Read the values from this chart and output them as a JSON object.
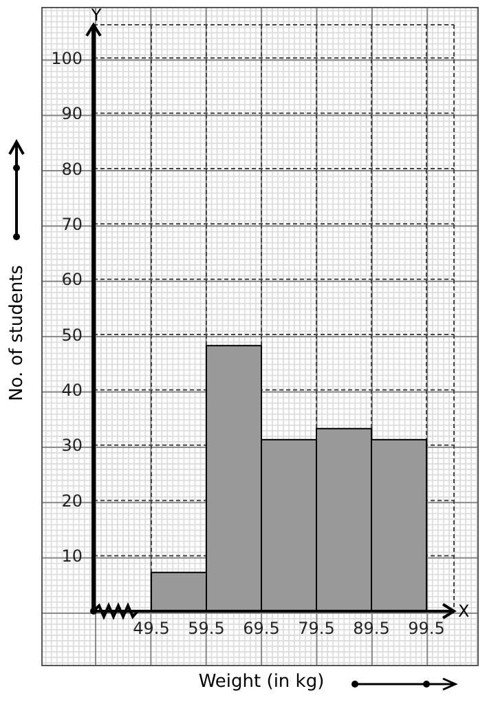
{
  "chart_data": {
    "type": "histogram",
    "xlabel": "Weight (in kg)",
    "ylabel": "No. of students",
    "annotations": [
      "Y",
      "X"
    ],
    "bins": [
      49.5,
      59.5,
      69.5,
      79.5,
      89.5,
      99.5
    ],
    "values": [
      7,
      48,
      31,
      33,
      31
    ],
    "color": "#999999",
    "xlim": [
      39,
      104.5
    ],
    "xticks": [
      49.5,
      59.5,
      69.5,
      79.5,
      89.5,
      99.5
    ],
    "ylim": [
      0,
      106
    ],
    "yticks": [
      10,
      20,
      30,
      40,
      50,
      60,
      70,
      80,
      90,
      100
    ],
    "grid": true
  }
}
